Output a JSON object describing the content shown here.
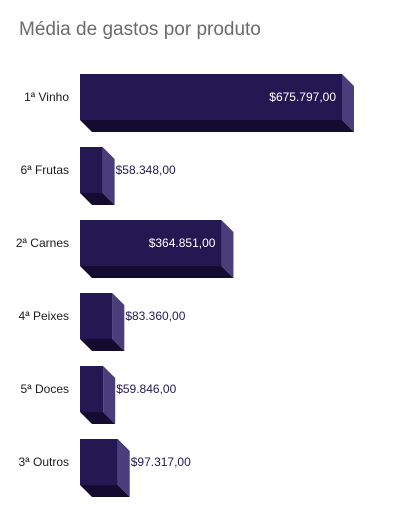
{
  "colors": {
    "front": "#241852",
    "side": "#4a3d7c",
    "bottom": "#140b30",
    "label_inside": "#ffffff",
    "label_outside": "#241852",
    "title": "#6b6b6b"
  },
  "chart_data": {
    "type": "bar",
    "orientation": "horizontal",
    "style": "3d",
    "title": "Média de gastos por produto",
    "xlabel": "",
    "ylabel": "",
    "grid": false,
    "legend": "none",
    "xlim": [
      0,
      675797
    ],
    "categories": [
      "1ª Vinho",
      "6ª Frutas",
      "2ª Carnes",
      "4ª Peixes",
      "5ª Doces",
      "3ª Outros"
    ],
    "values": [
      675797.0,
      58348.0,
      364851.0,
      83360.0,
      59846.0,
      97317.0
    ],
    "value_labels": [
      "$675.797,00",
      "$58.348,00",
      "$364.851,00",
      "$83.360,00",
      "$59.846,00",
      "$97.317,00"
    ]
  }
}
